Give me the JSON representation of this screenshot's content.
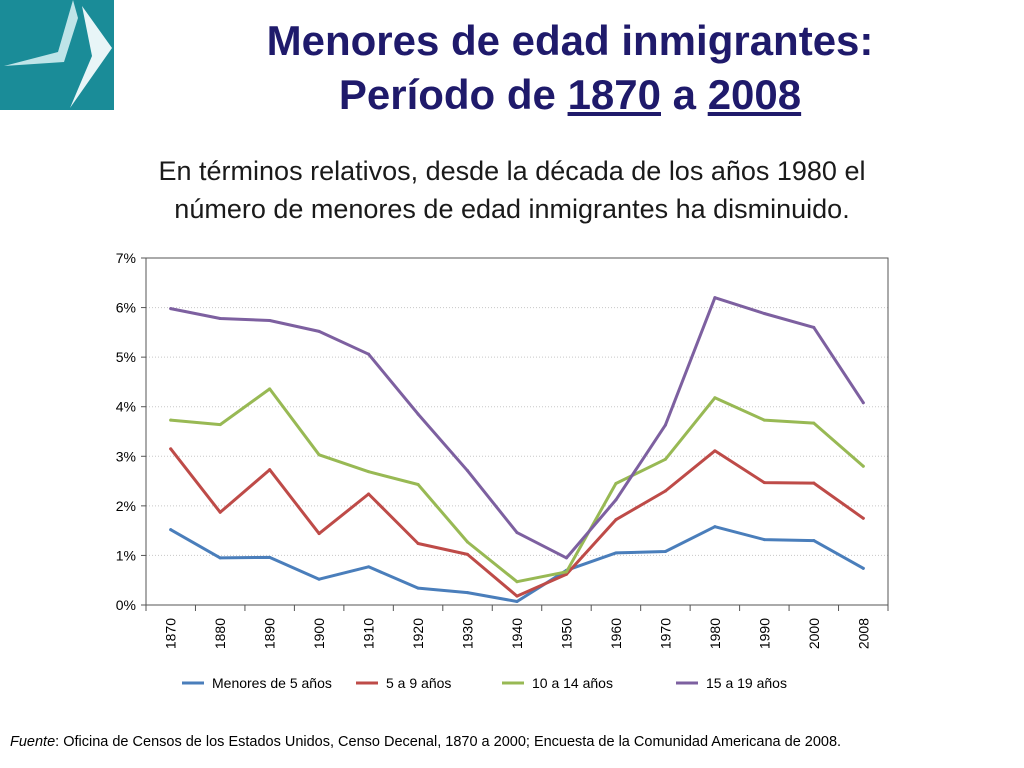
{
  "title": {
    "line1": "Menores de edad inmigrantes:",
    "line2_prefix": "Período de ",
    "year_start": "1870",
    "connector": " a ",
    "year_end": "2008"
  },
  "subtitle": {
    "line1": "En términos relativos, desde la década de los años 1980 el",
    "line2": "número de menores de edad inmigrantes ha disminuido."
  },
  "source": {
    "label": "Fuente",
    "text": ": Oficina de Censos de los Estados Unidos, Censo Decenal, 1870 a 2000; Encuesta de la Comunidad Americana de 2008."
  },
  "colors": {
    "logo_bg": "#1a8c98",
    "title": "#1f1a6b",
    "grid": "#c8c8c8"
  },
  "chart_data": {
    "type": "line",
    "categories": [
      "1870",
      "1880",
      "1890",
      "1900",
      "1910",
      "1920",
      "1930",
      "1940",
      "1950",
      "1960",
      "1970",
      "1980",
      "1990",
      "2000",
      "2008"
    ],
    "ylim": [
      0,
      7
    ],
    "yticks": [
      0,
      1,
      2,
      3,
      4,
      5,
      6,
      7
    ],
    "ytick_labels": [
      "0%",
      "1%",
      "2%",
      "3%",
      "4%",
      "5%",
      "6%",
      "7%"
    ],
    "grid": true,
    "legend_position": "bottom",
    "series": [
      {
        "name": "Menores de 5 años",
        "color": "#4a7ebb",
        "values": [
          1.52,
          0.95,
          0.96,
          0.52,
          0.77,
          0.34,
          0.25,
          0.07,
          0.7,
          1.05,
          1.08,
          1.58,
          1.32,
          1.3,
          0.74
        ]
      },
      {
        "name": "5 a 9 años",
        "color": "#be4b48",
        "values": [
          3.15,
          1.87,
          2.73,
          1.44,
          2.24,
          1.24,
          1.02,
          0.18,
          0.62,
          1.72,
          2.3,
          3.11,
          2.47,
          2.46,
          1.75
        ]
      },
      {
        "name": "10 a 14 años",
        "color": "#98b954",
        "values": [
          3.73,
          3.64,
          4.36,
          3.03,
          2.69,
          2.43,
          1.27,
          0.47,
          0.67,
          2.45,
          2.94,
          4.18,
          3.73,
          3.67,
          2.8
        ]
      },
      {
        "name": "15 a 19 años",
        "color": "#7d60a0",
        "values": [
          5.98,
          5.78,
          5.74,
          5.52,
          5.06,
          3.85,
          2.71,
          1.46,
          0.95,
          2.12,
          3.63,
          6.2,
          5.88,
          5.6,
          4.08
        ]
      }
    ]
  }
}
